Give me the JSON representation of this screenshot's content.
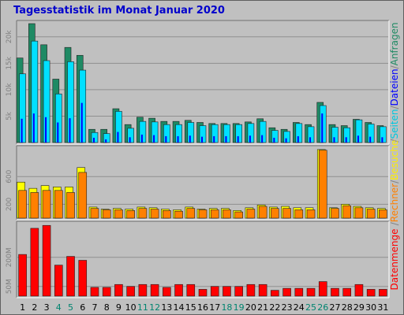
{
  "title": "Tagesstatistik im Monat Januar 2020",
  "colors": {
    "anfragen": "#1f8a64",
    "dateien": "#00e0ff",
    "seiten": "#0000ff",
    "rechner": "#ff8000",
    "besuche": "#ffff00",
    "datenmenge": "#ff0000",
    "weekend_label": "#00846f"
  },
  "chart_data": [
    {
      "type": "bar",
      "name_panel": "top",
      "x": [
        1,
        2,
        3,
        4,
        5,
        6,
        7,
        8,
        9,
        10,
        11,
        12,
        13,
        14,
        15,
        16,
        17,
        18,
        19,
        20,
        21,
        22,
        23,
        24,
        25,
        26,
        27,
        28,
        29,
        30,
        31
      ],
      "ylim": [
        0,
        22500
      ],
      "yticks": [
        {
          "v": 5000,
          "label": "5k"
        },
        {
          "v": 10000,
          "label": "10k"
        },
        {
          "v": 15000,
          "label": "15k"
        },
        {
          "v": 20000,
          "label": "20k"
        }
      ],
      "series": [
        {
          "name": "Anfragen",
          "color": "#1f8a64",
          "values": [
            16000,
            22500,
            18500,
            12000,
            18000,
            16500,
            2500,
            2500,
            6400,
            3400,
            4800,
            4600,
            4000,
            4000,
            4200,
            3800,
            3600,
            3600,
            3600,
            3900,
            4500,
            2800,
            2500,
            3800,
            3400,
            7600,
            3400,
            3200,
            4400,
            3800,
            3200
          ]
        },
        {
          "name": "Dateien",
          "color": "#00e0ff",
          "values": [
            13000,
            19200,
            15500,
            9200,
            15300,
            13700,
            1900,
            1700,
            5900,
            2700,
            4000,
            3900,
            3400,
            3400,
            3800,
            3200,
            3400,
            3400,
            3400,
            3600,
            4000,
            2300,
            2100,
            3600,
            3000,
            7000,
            2900,
            2800,
            4300,
            3500,
            3000
          ]
        },
        {
          "name": "Seiten",
          "color": "#0000ff",
          "values": [
            4500,
            5500,
            4800,
            3800,
            4600,
            7500,
            900,
            600,
            2000,
            1000,
            1500,
            1400,
            1200,
            1200,
            1300,
            1100,
            1200,
            1200,
            1200,
            1300,
            1400,
            900,
            800,
            1200,
            1000,
            5500,
            1000,
            1000,
            1300,
            1100,
            1000
          ]
        }
      ],
      "legend": [
        "Anfragen",
        "/",
        "Dateien",
        "/",
        "Seiten",
        "/"
      ]
    },
    {
      "type": "bar",
      "name_panel": "middle",
      "x": [
        1,
        2,
        3,
        4,
        5,
        6,
        7,
        8,
        9,
        10,
        11,
        12,
        13,
        14,
        15,
        16,
        17,
        18,
        19,
        20,
        21,
        22,
        23,
        24,
        25,
        26,
        27,
        28,
        29,
        30,
        31
      ],
      "ylim": [
        0,
        1000
      ],
      "yticks": [
        {
          "v": 200,
          "label": "200"
        },
        {
          "v": 600,
          "label": "600"
        }
      ],
      "series": [
        {
          "name": "Besuche",
          "color": "#ffff00",
          "values": [
            520,
            430,
            470,
            450,
            450,
            730,
            160,
            130,
            140,
            130,
            160,
            150,
            130,
            120,
            160,
            130,
            140,
            140,
            110,
            150,
            190,
            160,
            170,
            150,
            150,
            990,
            150,
            200,
            170,
            150,
            140
          ]
        },
        {
          "name": "Rechner",
          "color": "#ff8000",
          "values": [
            400,
            370,
            400,
            400,
            370,
            660,
            140,
            120,
            120,
            110,
            140,
            130,
            110,
            100,
            140,
            120,
            120,
            120,
            90,
            130,
            170,
            140,
            140,
            120,
            120,
            980,
            140,
            180,
            150,
            130,
            120
          ]
        }
      ],
      "legend": [
        "Besuche",
        "/",
        "Rechner",
        "/"
      ]
    },
    {
      "type": "bar",
      "name_panel": "bottom",
      "x": [
        1,
        2,
        3,
        4,
        5,
        6,
        7,
        8,
        9,
        10,
        11,
        12,
        13,
        14,
        15,
        16,
        17,
        18,
        19,
        20,
        21,
        22,
        23,
        24,
        25,
        26,
        27,
        28,
        29,
        30,
        31
      ],
      "ylim": [
        0,
        370
      ],
      "yticks": [
        {
          "v": 50,
          "label": "50M"
        },
        {
          "v": 200,
          "label": "200M"
        }
      ],
      "series": [
        {
          "name": "Datenmenge",
          "color": "#ff0000",
          "values": [
            215,
            350,
            365,
            160,
            205,
            185,
            45,
            45,
            60,
            50,
            60,
            60,
            45,
            60,
            60,
            35,
            50,
            50,
            50,
            60,
            60,
            30,
            40,
            40,
            40,
            75,
            40,
            40,
            60,
            35,
            35
          ]
        }
      ],
      "legend": [
        "Datenmenge"
      ]
    }
  ],
  "weekend_days": [
    4,
    5,
    11,
    12,
    18,
    19,
    25,
    26
  ]
}
